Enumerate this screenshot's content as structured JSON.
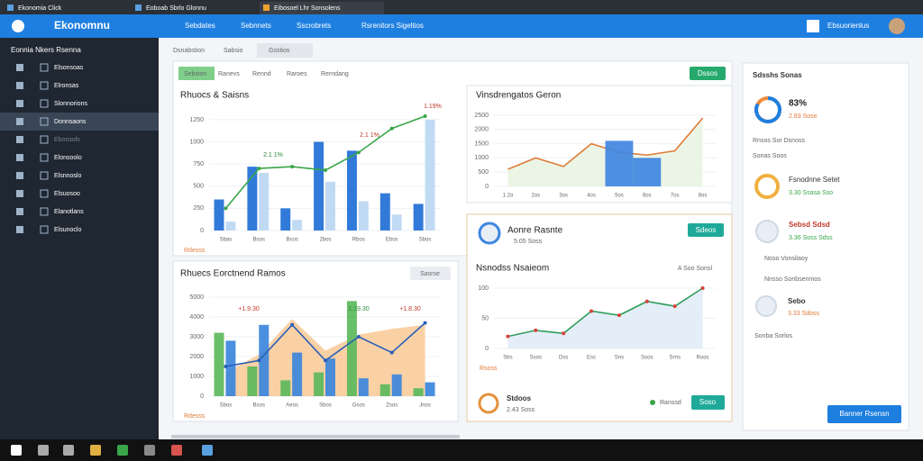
{
  "tabs": [
    "Ekonomia Click",
    "Eoboab Sbrlo Glonnu",
    "Eibosoel Lhr Sonsolens"
  ],
  "header": {
    "logo": "Ekonomnu",
    "nav": [
      "Sebdates",
      "Sebnnets",
      "Sscrobrets",
      "Rsrenitors Sigeltios"
    ],
    "user": "Ebsuorienlus"
  },
  "sidebar": {
    "title": "Eonnia Nkers Rsenna",
    "items": [
      "Elsonsoas",
      "Elronsas",
      "Slonnorions",
      "Donnsaons",
      "Ebonsols",
      "Elonsoolo",
      "Elsnnoslo",
      "Elsuosoo",
      "Elanotlans",
      "Elsunoclo"
    ]
  },
  "toolbar": [
    "Dsnabstion",
    "Sabsio",
    "Gsstios"
  ],
  "filters": [
    "Sebsion",
    "Ranevs",
    "Rennd",
    "Raroes",
    "Rerndang"
  ],
  "action": "Dssos",
  "card4": {
    "title": "Aonre Rasnte",
    "sub": "5.05 Soss",
    "button": "Sdeos",
    "footer_title": "Stdoos",
    "footer_sub": "2.43 Soss",
    "status": "Ranssd",
    "footer_button": "Soso",
    "filter": "A Soo Sonsl"
  },
  "card3_button": "Sasrse",
  "right_panel": {
    "title": "Sdsshs Sonas",
    "score": 83,
    "score_label": "83%",
    "score_sub": "2.83 Sose",
    "section1": "Rnsos Sor Dsnoss",
    "section2": "Sonas Soos",
    "items": [
      {
        "title": "Fsnodnne Setet",
        "sub": "3.30 Ssasa Sso"
      },
      {
        "title": "Sebsd Sdsd",
        "sub": "3.36 Soss Sdss"
      }
    ],
    "section3": "Noso Vonsilaoy",
    "section4": "Nnsso Sonbsenmos",
    "item3": {
      "title": "Sebo",
      "sub": "3.33 Sdoss"
    },
    "footer": "Sonba Sorlos",
    "button": "Banner Rsensn"
  },
  "chart_data": [
    {
      "type": "bar",
      "title": "Rhuocs & Saisns",
      "categories": [
        "Sbas",
        "Bsos",
        "Bsos",
        "2bos",
        "Rbos",
        "Ebos",
        "Sbos"
      ],
      "ylim": [
        0,
        1300
      ],
      "yticks": [
        0,
        250,
        500,
        750,
        1000,
        1250
      ],
      "grid": true,
      "axis_label": "Rdesss",
      "annotations": [
        "1.19%",
        "2.1 1%",
        "2.1 1%"
      ],
      "series": [
        {
          "color": "#1f6fd6",
          "values": [
            350,
            720,
            250,
            1000,
            900,
            420,
            300
          ]
        },
        {
          "color": "#bcd7f3",
          "values": [
            100,
            650,
            120,
            550,
            330,
            180,
            1250
          ]
        },
        {
          "type": "line",
          "color": "#3aa64a",
          "values": [
            250,
            700,
            720,
            680,
            880,
            1150,
            1290
          ]
        }
      ]
    },
    {
      "type": "area",
      "title": "Vinsdrengatos Geron",
      "categories": [
        "1 2o",
        "2os",
        "3os",
        "4os",
        "5os",
        "6os",
        "7os",
        "8os"
      ],
      "ylim": [
        0,
        2500
      ],
      "yticks": [
        0,
        500,
        1000,
        1500,
        2000,
        2500
      ],
      "grid": true,
      "series": [
        {
          "color": "#e8f3e0",
          "line": "#e07b39",
          "values": [
            600,
            1000,
            700,
            1500,
            1200,
            1100,
            1250,
            2400
          ]
        },
        {
          "type": "bar",
          "color": "#3f86e0",
          "values": [
            null,
            null,
            null,
            null,
            1600,
            1000,
            null,
            null
          ]
        }
      ]
    },
    {
      "type": "bar",
      "title": "Rhuecs Eorctnend Ramos",
      "categories": [
        "Sbos",
        "Bsos",
        "Aeos",
        "Sbos",
        "Gsos",
        "Zsos",
        "Jnos"
      ],
      "ylim": [
        0,
        5000
      ],
      "yticks": [
        0,
        1000,
        2000,
        3000,
        4000,
        5000
      ],
      "grid": true,
      "axis_label": "Rdesss",
      "annotations": [
        "+1.9.30",
        "1.19.30",
        "+1.8.30"
      ],
      "series": [
        {
          "type": "area",
          "color": "#f8c995",
          "values": [
            1200,
            2100,
            3900,
            2300,
            3100,
            3400,
            3600
          ]
        },
        {
          "color": "#5cb85c",
          "values": [
            3200,
            1500,
            800,
            1200,
            4800,
            600,
            400
          ]
        },
        {
          "color": "#3c86dc",
          "values": [
            2800,
            3600,
            2200,
            1900,
            900,
            1100,
            700
          ]
        },
        {
          "type": "line",
          "color": "#2c5fb8",
          "values": [
            1500,
            1800,
            3600,
            1800,
            3000,
            2200,
            3700
          ]
        }
      ]
    },
    {
      "type": "line",
      "title": "Nsnodss Nsaieom",
      "categories": [
        "Sbs",
        "Ssos",
        "Dss",
        "Esc",
        "Sns",
        "Soos",
        "Srns",
        "Roos"
      ],
      "ylim": [
        0,
        100
      ],
      "yticks": [
        0,
        50,
        100
      ],
      "grid": true,
      "axis_label": "Rsoss",
      "series": [
        {
          "color": "#2e9e5b",
          "marker": "#d9403a",
          "fill": "#e4eef8",
          "values": [
            20,
            30,
            25,
            62,
            55,
            78,
            70,
            100
          ]
        }
      ]
    }
  ]
}
